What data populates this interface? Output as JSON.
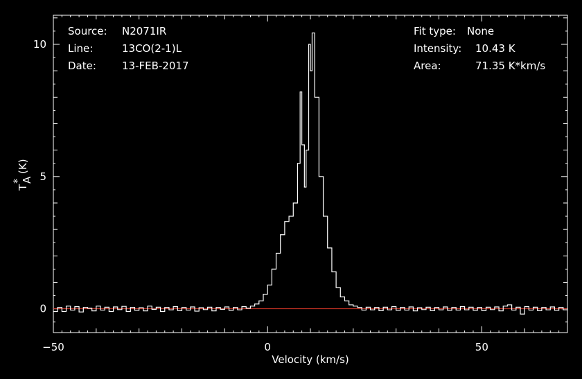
{
  "chart_data": {
    "type": "line",
    "xlabel": "Velocity (km/s)",
    "ylabel_main": "T",
    "ylabel_sup": "*",
    "ylabel_sub": "A",
    "ylabel_unit": "(K)",
    "xlim": [
      -50,
      70
    ],
    "ylim": [
      -0.9,
      11.1
    ],
    "x_ticks": [
      -50,
      0,
      50
    ],
    "x_tick_labels": [
      "−50",
      "0",
      "50"
    ],
    "y_ticks": [
      0,
      5,
      10
    ],
    "y_tick_labels": [
      "0",
      "5",
      "10"
    ],
    "baseline": 0,
    "colors": {
      "background": "#000000",
      "foreground": "#ffffff",
      "spectrum": "#ffffff",
      "baseline": "#e23a2a"
    },
    "info_left": [
      {
        "label": "Source:",
        "value": "N2071IR"
      },
      {
        "label": "Line:",
        "value": "13CO(2-1)L"
      },
      {
        "label": "Date:",
        "value": "13-FEB-2017"
      }
    ],
    "info_right": [
      {
        "label": "Fit type:",
        "value": "None"
      },
      {
        "label": "Intensity:",
        "value": "10.43 K"
      },
      {
        "label": "Area:",
        "value": "71.35 K*km/s"
      }
    ],
    "series": [
      {
        "style": "step",
        "points": [
          [
            -50,
            -0.1
          ],
          [
            -49,
            0.05
          ],
          [
            -48,
            -0.1
          ],
          [
            -47,
            0.1
          ],
          [
            -46,
            -0.05
          ],
          [
            -45,
            0.08
          ],
          [
            -44,
            -0.12
          ],
          [
            -43,
            0.05
          ],
          [
            -42,
            0.02
          ],
          [
            -41,
            -0.08
          ],
          [
            -40,
            0.1
          ],
          [
            -39,
            -0.05
          ],
          [
            -38,
            0.06
          ],
          [
            -37,
            -0.1
          ],
          [
            -36,
            0.07
          ],
          [
            -35,
            -0.03
          ],
          [
            -34,
            0.09
          ],
          [
            -33,
            -0.1
          ],
          [
            -32,
            0.05
          ],
          [
            -31,
            -0.06
          ],
          [
            -30,
            0.04
          ],
          [
            -29,
            -0.08
          ],
          [
            -28,
            0.1
          ],
          [
            -27,
            -0.02
          ],
          [
            -26,
            0.06
          ],
          [
            -25,
            -0.1
          ],
          [
            -24,
            0.05
          ],
          [
            -23,
            -0.04
          ],
          [
            -22,
            0.08
          ],
          [
            -21,
            -0.07
          ],
          [
            -20,
            0.05
          ],
          [
            -19,
            -0.05
          ],
          [
            -18,
            0.07
          ],
          [
            -17,
            -0.09
          ],
          [
            -16,
            0.04
          ],
          [
            -15,
            -0.03
          ],
          [
            -14,
            0.06
          ],
          [
            -13,
            -0.08
          ],
          [
            -12,
            0.05
          ],
          [
            -11,
            -0.02
          ],
          [
            -10,
            0.07
          ],
          [
            -9,
            -0.06
          ],
          [
            -8,
            0.05
          ],
          [
            -7,
            -0.04
          ],
          [
            -6,
            0.08
          ],
          [
            -5,
            0.02
          ],
          [
            -4,
            0.1
          ],
          [
            -3,
            0.18
          ],
          [
            -2,
            0.3
          ],
          [
            -1,
            0.55
          ],
          [
            0,
            0.9
          ],
          [
            1,
            1.5
          ],
          [
            2,
            2.1
          ],
          [
            3,
            2.8
          ],
          [
            4,
            3.3
          ],
          [
            5,
            3.5
          ],
          [
            6,
            4.0
          ],
          [
            7,
            5.5
          ],
          [
            7.6,
            8.2
          ],
          [
            8,
            6.2
          ],
          [
            8.6,
            4.6
          ],
          [
            9,
            6.0
          ],
          [
            9.6,
            10.0
          ],
          [
            10,
            9.0
          ],
          [
            10.4,
            10.43
          ],
          [
            11,
            8.0
          ],
          [
            12,
            5.0
          ],
          [
            13,
            3.5
          ],
          [
            14,
            2.3
          ],
          [
            15,
            1.4
          ],
          [
            16,
            0.8
          ],
          [
            17,
            0.45
          ],
          [
            18,
            0.3
          ],
          [
            19,
            0.15
          ],
          [
            20,
            0.1
          ],
          [
            21,
            0.05
          ],
          [
            22,
            -0.05
          ],
          [
            23,
            0.06
          ],
          [
            24,
            -0.04
          ],
          [
            25,
            0.05
          ],
          [
            26,
            -0.07
          ],
          [
            27,
            0.06
          ],
          [
            28,
            -0.04
          ],
          [
            29,
            0.08
          ],
          [
            30,
            -0.06
          ],
          [
            31,
            0.05
          ],
          [
            32,
            -0.05
          ],
          [
            33,
            0.07
          ],
          [
            34,
            -0.08
          ],
          [
            35,
            0.04
          ],
          [
            36,
            -0.03
          ],
          [
            37,
            0.06
          ],
          [
            38,
            -0.07
          ],
          [
            39,
            0.05
          ],
          [
            40,
            -0.04
          ],
          [
            41,
            0.07
          ],
          [
            42,
            -0.06
          ],
          [
            43,
            0.05
          ],
          [
            44,
            -0.05
          ],
          [
            45,
            0.08
          ],
          [
            46,
            -0.04
          ],
          [
            47,
            0.06
          ],
          [
            48,
            -0.06
          ],
          [
            49,
            0.05
          ],
          [
            50,
            -0.07
          ],
          [
            51,
            0.06
          ],
          [
            52,
            -0.03
          ],
          [
            53,
            0.07
          ],
          [
            54,
            -0.08
          ],
          [
            55,
            0.1
          ],
          [
            56,
            0.15
          ],
          [
            57,
            -0.05
          ],
          [
            58,
            0.06
          ],
          [
            59,
            -0.2
          ],
          [
            60,
            0.08
          ],
          [
            61,
            -0.05
          ],
          [
            62,
            0.06
          ],
          [
            63,
            -0.07
          ],
          [
            64,
            0.05
          ],
          [
            65,
            -0.04
          ],
          [
            66,
            0.07
          ],
          [
            67,
            -0.06
          ],
          [
            68,
            0.05
          ],
          [
            69,
            -0.04
          ],
          [
            70,
            0.03
          ]
        ]
      }
    ]
  }
}
